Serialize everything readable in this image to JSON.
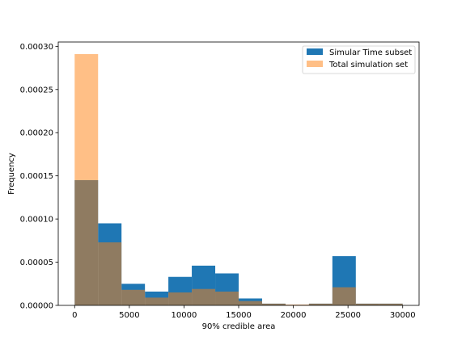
{
  "chart_data": {
    "type": "bar",
    "title": "",
    "xlabel": "90% credible area",
    "ylabel": "Frequency",
    "xlim": [
      -1500,
      31500
    ],
    "ylim": [
      0,
      0.000305
    ],
    "xticks": [
      0,
      5000,
      10000,
      15000,
      20000,
      25000,
      30000
    ],
    "xtick_labels": [
      "0",
      "5000",
      "10000",
      "15000",
      "20000",
      "25000",
      "30000"
    ],
    "yticks": [
      0,
      5e-05,
      0.0001,
      0.00015,
      0.0002,
      0.00025,
      0.0003
    ],
    "ytick_labels": [
      "0.00000",
      "0.00005",
      "0.00010",
      "0.00015",
      "0.00020",
      "0.00025",
      "0.00030"
    ],
    "bin_edges": [
      0,
      2143,
      4286,
      6429,
      8571,
      10714,
      12857,
      15000,
      17143,
      19286,
      21429,
      23571,
      25714,
      27857,
      30000
    ],
    "grid": false,
    "legend_position": "top-right",
    "series": [
      {
        "name": "Simular Time subset",
        "color": "#1f77b4",
        "opacity": 1,
        "values": [
          0.000145,
          9.5e-05,
          2.5e-05,
          1.6e-05,
          3.3e-05,
          4.6e-05,
          3.7e-05,
          8e-06,
          2e-06,
          5e-07,
          2e-06,
          5.7e-05,
          2e-06,
          2e-06
        ]
      },
      {
        "name": "Total simulation set",
        "color": "#ff7f0e",
        "opacity": 0.5,
        "values": [
          0.000291,
          7.3e-05,
          1.8e-05,
          9e-06,
          1.5e-05,
          1.9e-05,
          1.6e-05,
          5e-06,
          2e-06,
          1e-06,
          2e-06,
          2.1e-05,
          2e-06,
          2e-06
        ]
      }
    ]
  }
}
